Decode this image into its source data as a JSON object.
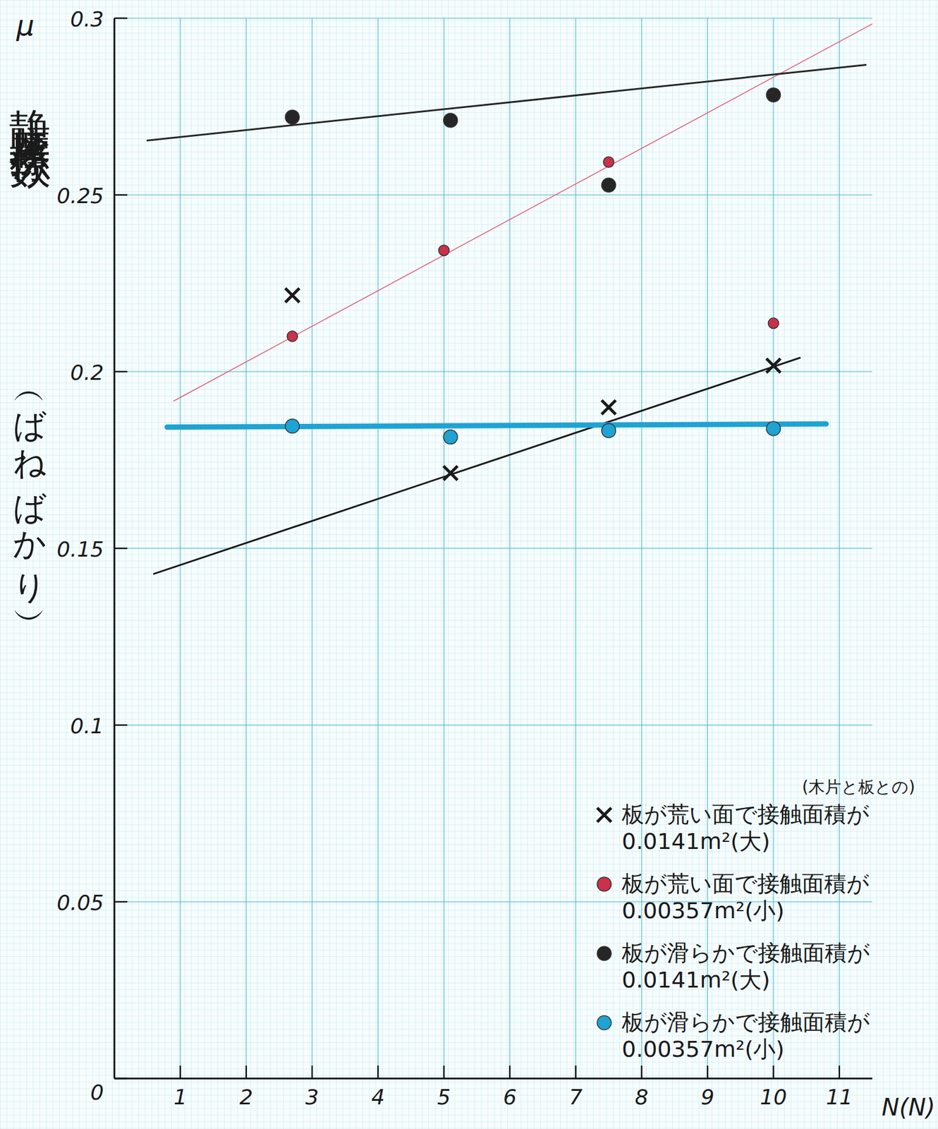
{
  "chart_data": {
    "type": "scatter",
    "y_label_symbol": "μ",
    "y_label": "静止摩擦係数",
    "y_label_sub": "（ばねばかり）",
    "x_label": "N(N)",
    "xlim": [
      0,
      11.5
    ],
    "ylim": [
      0,
      0.3
    ],
    "xticks": [
      1,
      2,
      3,
      4,
      5,
      6,
      7,
      8,
      9,
      10,
      11
    ],
    "yticks": [
      0,
      0.05,
      0.1,
      0.15,
      0.2,
      0.25,
      0.3
    ],
    "grid": true,
    "legend": "lower right",
    "legend_note": "(木片と板との)",
    "series": [
      {
        "name": "板が荒い面で接触面積が0.0141m²(大)",
        "color": "#1a1a1a",
        "marker": "x",
        "x": [
          2.7,
          5.1,
          7.5,
          10.0
        ],
        "values": [
          0.2216,
          0.1713,
          0.1899,
          0.2017
        ],
        "fit": {
          "x": [
            0.6,
            10.4
          ],
          "values": [
            0.1428,
            0.2039
          ]
        }
      },
      {
        "name": "板が荒い面で接触面積が0.00357m²(小)",
        "color": "#c8324a",
        "marker": "circle",
        "x": [
          2.7,
          5.0,
          7.5,
          10.0
        ],
        "values": [
          0.21,
          0.2343,
          0.2593,
          0.2137
        ],
        "fit": {
          "x": [
            0.9,
            11.5
          ],
          "values": [
            0.1917,
            0.2984
          ]
        }
      },
      {
        "name": "板が滑らかで接触面積が0.0141m²(大)",
        "color": "#262626",
        "marker": "circle",
        "x": [
          2.7,
          5.1,
          7.5,
          10.0
        ],
        "values": [
          0.272,
          0.2711,
          0.2528,
          0.2783
        ],
        "fit": {
          "x": [
            0.5,
            11.4
          ],
          "values": [
            0.2654,
            0.2868
          ]
        }
      },
      {
        "name": "板が滑らかで接触面積が0.00357m²(小)",
        "color": "#1ea3d4",
        "marker": "circle",
        "x": [
          2.7,
          5.1,
          7.5,
          10.0
        ],
        "values": [
          0.1846,
          0.1815,
          0.1833,
          0.1839
        ],
        "fit": {
          "x": [
            0.8,
            10.8
          ],
          "values": [
            0.1843,
            0.1852
          ]
        }
      }
    ]
  }
}
